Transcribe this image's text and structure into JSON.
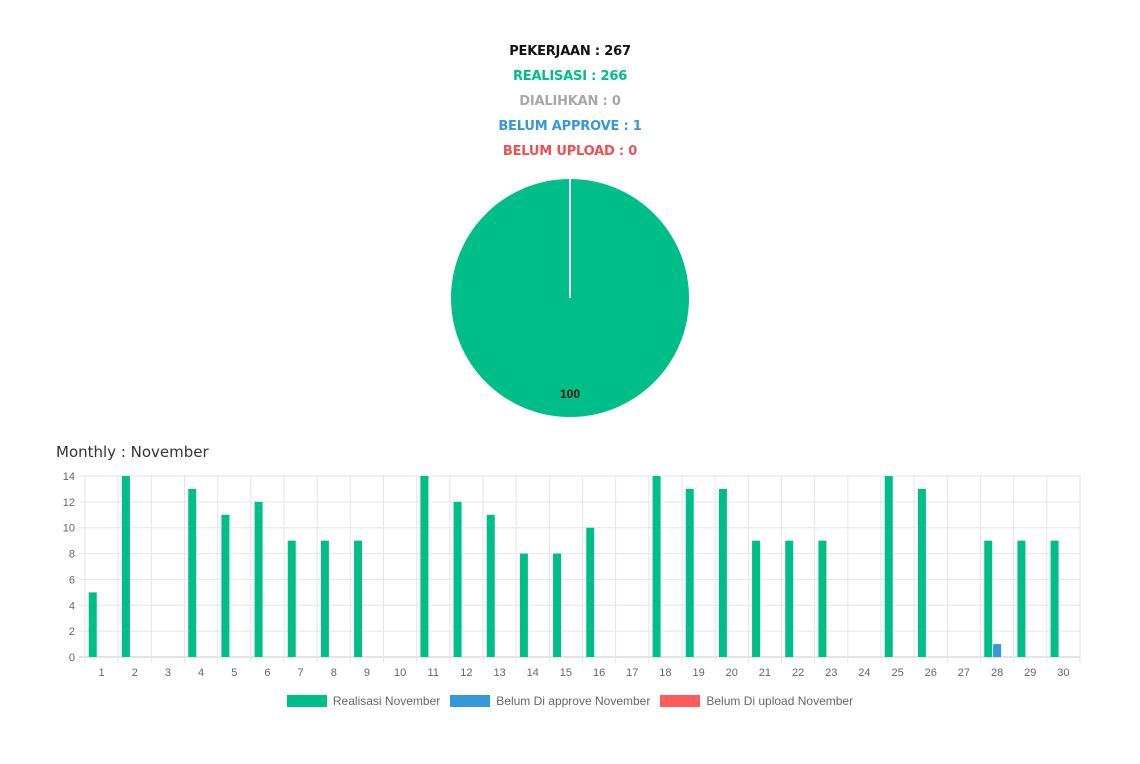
{
  "stats": {
    "pekerjaan": "PEKERJAAN : 267",
    "realisasi": "REALISASI : 266",
    "dialihkan": "DIALIHKAN : 0",
    "belum_approve": "BELUM APPROVE : 1",
    "belum_upload": "BELUM UPLOAD : 0"
  },
  "colors": {
    "realisasi": "#00be88",
    "belum_approve": "#3498db",
    "belum_upload": "#ff5b5b",
    "dialihkan": "#a8a8a8"
  },
  "monthly_title": "Monthly : November",
  "chart_data": [
    {
      "type": "pie",
      "slices": [
        {
          "name": "Realisasi",
          "value": 100,
          "color": "#00be88"
        },
        {
          "name": "Belum Approve",
          "value": 0,
          "color": "#3498db"
        }
      ],
      "data_label": "100"
    },
    {
      "type": "bar",
      "categories": [
        "1",
        "2",
        "3",
        "4",
        "5",
        "6",
        "7",
        "8",
        "9",
        "10",
        "11",
        "12",
        "13",
        "14",
        "15",
        "16",
        "17",
        "18",
        "19",
        "20",
        "21",
        "22",
        "23",
        "24",
        "25",
        "26",
        "27",
        "28",
        "29",
        "30"
      ],
      "series": [
        {
          "name": "Realisasi November",
          "color": "#00be88",
          "values": [
            5,
            14,
            0,
            13,
            11,
            12,
            9,
            9,
            9,
            0,
            14,
            12,
            11,
            8,
            8,
            10,
            0,
            14,
            13,
            13,
            9,
            9,
            9,
            0,
            14,
            13,
            0,
            9,
            9,
            9
          ]
        },
        {
          "name": "Belum Di approve November",
          "color": "#3498db",
          "values": [
            0,
            0,
            0,
            0,
            0,
            0,
            0,
            0,
            0,
            0,
            0,
            0,
            0,
            0,
            0,
            0,
            0,
            0,
            0,
            0,
            0,
            0,
            0,
            0,
            0,
            0,
            0,
            1,
            0,
            0
          ]
        },
        {
          "name": "Belum Di upload November",
          "color": "#ff5b5b",
          "values": [
            0,
            0,
            0,
            0,
            0,
            0,
            0,
            0,
            0,
            0,
            0,
            0,
            0,
            0,
            0,
            0,
            0,
            0,
            0,
            0,
            0,
            0,
            0,
            0,
            0,
            0,
            0,
            0,
            0,
            0
          ]
        }
      ],
      "y_ticks": [
        "0",
        "2",
        "4",
        "6",
        "8",
        "10",
        "12",
        "14"
      ],
      "ylim": [
        0,
        14
      ],
      "grid": true,
      "legend_position": "bottom"
    }
  ]
}
